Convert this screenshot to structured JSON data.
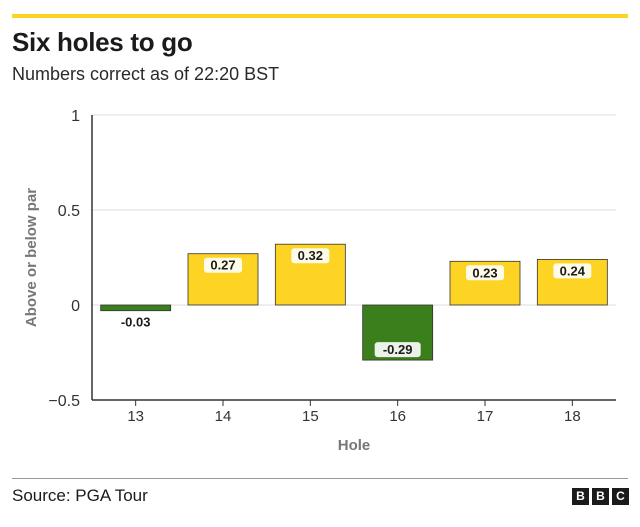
{
  "header": {
    "title": "Six holes to go",
    "subtitle": "Numbers correct as of 22:20 BST"
  },
  "footer": {
    "source": "Source: PGA Tour",
    "logo_letters": [
      "B",
      "B",
      "C"
    ]
  },
  "colors": {
    "accent": "#fdd324",
    "positive": "#fdd324",
    "negative": "#3b7e1c",
    "label_bg": "#ffffff"
  },
  "chart_data": {
    "type": "bar",
    "xlabel": "Hole",
    "ylabel": "Above or below par",
    "ylim": [
      -0.5,
      1
    ],
    "yticks": [
      {
        "value": -0.5,
        "label": "−0.5"
      },
      {
        "value": 0,
        "label": "0"
      },
      {
        "value": 0.5,
        "label": "0.5"
      },
      {
        "value": 1,
        "label": "1"
      }
    ],
    "grid": true,
    "categories": [
      "13",
      "14",
      "15",
      "16",
      "17",
      "18"
    ],
    "values": [
      -0.03,
      0.27,
      0.32,
      -0.29,
      0.23,
      0.24
    ],
    "labels": [
      "-0.03",
      "0.27",
      "0.32",
      "-0.29",
      "0.23",
      "0.24"
    ]
  }
}
